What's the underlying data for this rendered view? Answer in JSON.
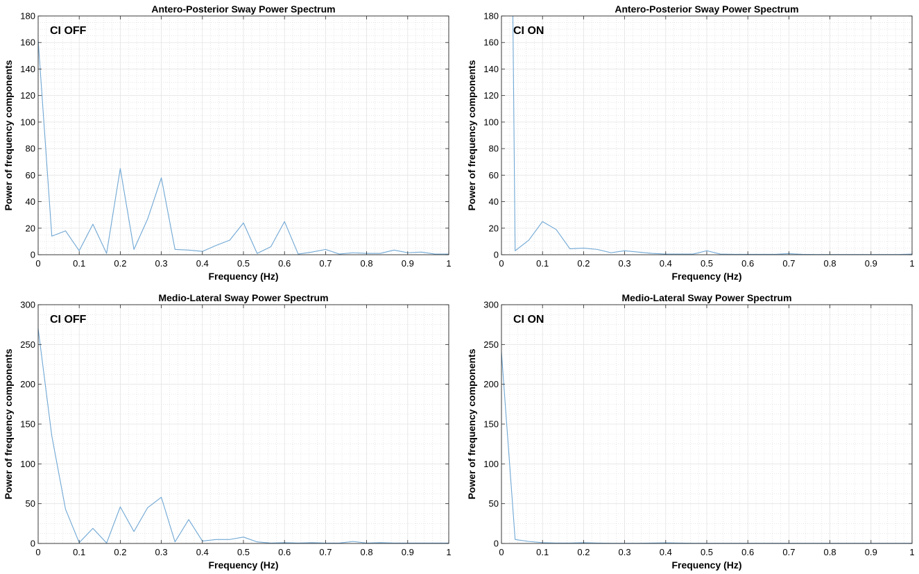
{
  "chart_data": [
    {
      "type": "line",
      "title": "Antero-Posterior Sway Power Spectrum",
      "annotation": "CI OFF",
      "xlabel": "Frequency (Hz)",
      "ylabel": "Power of frequency components",
      "xlim": [
        0,
        1
      ],
      "ylim": [
        0,
        180
      ],
      "xticks": [
        "0",
        "0.1",
        "0.2",
        "0.3",
        "0.4",
        "0.5",
        "0.6",
        "0.7",
        "0.8",
        "0.9",
        "1"
      ],
      "yticks": [
        "0",
        "20",
        "40",
        "60",
        "80",
        "100",
        "120",
        "140",
        "160",
        "180"
      ],
      "grid": true,
      "line_color": "#6fa7d4",
      "series": [
        {
          "x": [
            0,
            0.0333,
            0.0667,
            0.1,
            0.1333,
            0.1667,
            0.2,
            0.2333,
            0.2667,
            0.3,
            0.3333,
            0.3667,
            0.4,
            0.4333,
            0.4667,
            0.5,
            0.5333,
            0.5667,
            0.6,
            0.6333,
            0.6667,
            0.7,
            0.7333,
            0.7667,
            0.8,
            0.8333,
            0.8667,
            0.9,
            0.9333,
            0.9667,
            1
          ],
          "y": [
            162,
            14,
            18,
            3,
            23,
            1,
            65,
            4,
            27,
            58,
            4,
            3.5,
            2.5,
            7,
            11,
            24,
            1,
            6,
            25,
            0.5,
            2,
            4,
            0.5,
            1.5,
            1,
            1,
            3.5,
            1.5,
            2,
            0.5,
            0.5
          ]
        }
      ]
    },
    {
      "type": "line",
      "title": "Antero-Posterior Sway Power Spectrum",
      "annotation": "CI ON",
      "xlabel": "Frequency (Hz)",
      "ylabel": "Power of frequency components",
      "xlim": [
        0,
        1
      ],
      "ylim": [
        0,
        180
      ],
      "xticks": [
        "0",
        "0.1",
        "0.2",
        "0.3",
        "0.4",
        "0.5",
        "0.6",
        "0.7",
        "0.8",
        "0.9",
        "1"
      ],
      "yticks": [
        "0",
        "20",
        "40",
        "60",
        "80",
        "100",
        "120",
        "140",
        "160",
        "180"
      ],
      "grid": true,
      "line_color": "#6fa7d4",
      "series": [
        {
          "x": [
            0.0278,
            0.0333,
            0.0667,
            0.1,
            0.1333,
            0.1667,
            0.2,
            0.2333,
            0.2667,
            0.3,
            0.3333,
            0.3667,
            0.4,
            0.4333,
            0.4667,
            0.5,
            0.5333,
            0.5667,
            0.6,
            0.6333,
            0.6667,
            0.7,
            0.7333,
            0.7667,
            0.8,
            0.8333,
            0.8667,
            0.9,
            0.9333,
            0.9667,
            1
          ],
          "y": [
            180,
            3,
            11,
            25,
            19,
            4.5,
            5,
            4,
            1.5,
            3,
            2,
            1,
            0.5,
            0.5,
            0.5,
            3,
            0.5,
            0.3,
            0.3,
            0.3,
            0.3,
            0.8,
            0.3,
            0.2,
            0.2,
            0.2,
            0.2,
            0.2,
            0.2,
            0.2,
            0.5
          ]
        }
      ]
    },
    {
      "type": "line",
      "title": "Medio-Lateral Sway Power Spectrum",
      "annotation": "CI OFF",
      "xlabel": "Frequency (Hz)",
      "ylabel": "Power of frequency components",
      "xlim": [
        0,
        1
      ],
      "ylim": [
        0,
        300
      ],
      "xticks": [
        "0",
        "0.1",
        "0.2",
        "0.3",
        "0.4",
        "0.5",
        "0.6",
        "0.7",
        "0.8",
        "0.9",
        "1"
      ],
      "yticks": [
        "0",
        "50",
        "100",
        "150",
        "200",
        "250",
        "300"
      ],
      "grid": true,
      "line_color": "#6fa7d4",
      "series": [
        {
          "x": [
            0,
            0.0333,
            0.0667,
            0.1,
            0.1333,
            0.1667,
            0.2,
            0.2333,
            0.2667,
            0.3,
            0.3333,
            0.3667,
            0.4,
            0.4333,
            0.4667,
            0.5,
            0.5333,
            0.5667,
            0.6,
            0.6333,
            0.6667,
            0.7,
            0.7333,
            0.7667,
            0.8,
            0.8333,
            0.8667,
            0.9,
            0.9333,
            0.9667,
            1
          ],
          "y": [
            270,
            135,
            43,
            1,
            19,
            0.5,
            46,
            15,
            45,
            58,
            2,
            30,
            3,
            5,
            5,
            8,
            2,
            0.5,
            1,
            0.5,
            1,
            0.5,
            0.5,
            2.5,
            0.5,
            1,
            0.5,
            0.5,
            0.5,
            0.5,
            0.5
          ]
        }
      ]
    },
    {
      "type": "line",
      "title": "Medio-Lateral Sway Power Spectrum",
      "annotation": "CI ON",
      "xlabel": "Frequency (Hz)",
      "ylabel": "Power of frequency components",
      "xlim": [
        0,
        1
      ],
      "ylim": [
        0,
        300
      ],
      "xticks": [
        "0",
        "0.1",
        "0.2",
        "0.3",
        "0.4",
        "0.5",
        "0.6",
        "0.7",
        "0.8",
        "0.9",
        "1"
      ],
      "yticks": [
        "0",
        "50",
        "100",
        "150",
        "200",
        "250",
        "300"
      ],
      "grid": true,
      "line_color": "#6fa7d4",
      "series": [
        {
          "x": [
            0,
            0.0333,
            0.0667,
            0.1,
            0.1333,
            0.1667,
            0.2,
            0.2333,
            0.2667,
            0.3,
            0.3333,
            0.3667,
            0.4,
            0.4333,
            0.4667,
            0.5,
            0.5333,
            0.5667,
            0.6,
            0.6333,
            0.6667,
            0.7,
            0.7333,
            0.7667,
            0.8,
            0.8333,
            0.8667,
            0.9,
            0.9333,
            0.9667,
            1
          ],
          "y": [
            240,
            5,
            2.5,
            1,
            0.5,
            0.5,
            1,
            0.5,
            0.3,
            0.3,
            0.3,
            0.5,
            0.8,
            0.5,
            0.3,
            0.3,
            0.3,
            0.3,
            0.3,
            0.3,
            0.3,
            0.3,
            0.3,
            0.3,
            0.3,
            0.3,
            0.3,
            0.3,
            0.3,
            0.3,
            0.3
          ]
        }
      ]
    }
  ]
}
